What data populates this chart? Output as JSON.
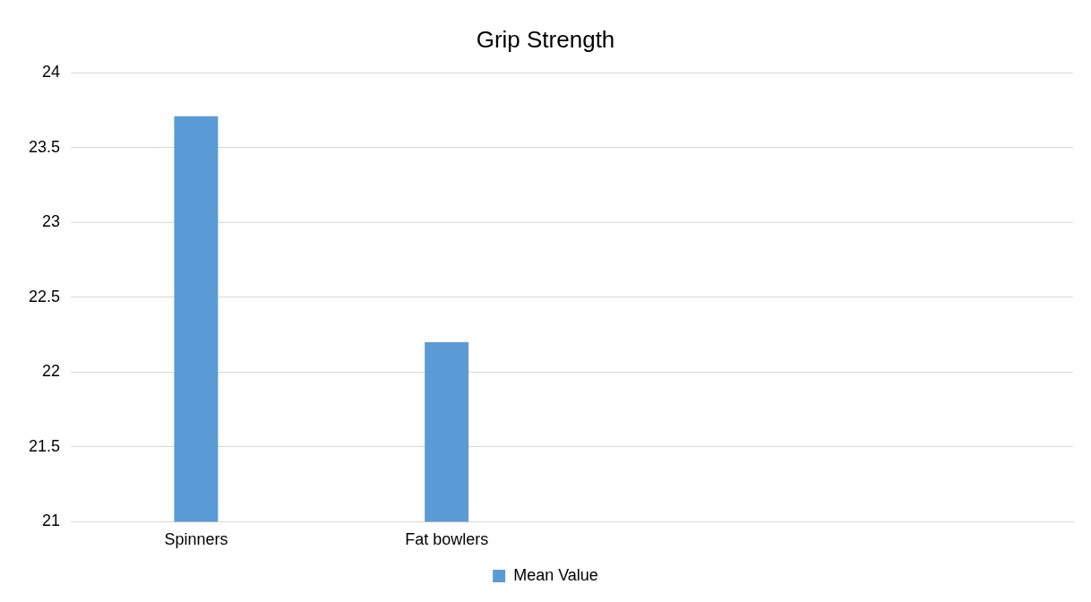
{
  "chart_data": {
    "type": "bar",
    "title": "Grip Strength",
    "categories": [
      "Spinners",
      "Fat bowlers",
      null,
      null
    ],
    "series": [
      {
        "name": "Mean Value",
        "color": "#5b9bd5",
        "values": [
          23.71,
          22.2,
          null,
          null
        ]
      }
    ],
    "ylim": [
      21,
      24
    ],
    "yticks": [
      21,
      21.5,
      22,
      22.5,
      23,
      23.5,
      24
    ],
    "grid": "y",
    "legend": "bottom"
  }
}
